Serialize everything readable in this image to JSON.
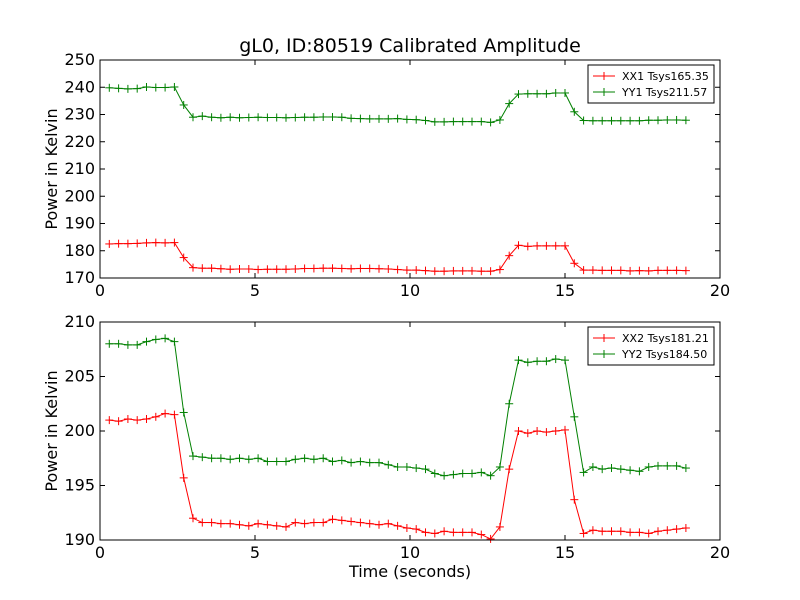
{
  "figure": {
    "title": "gL0, ID:80519 Calibrated Amplitude"
  },
  "chart_data": [
    {
      "type": "line",
      "title": "gL0, ID:80519 Calibrated Amplitude",
      "xlabel": "",
      "ylabel": "Power in Kelvin",
      "xlim": [
        0,
        20
      ],
      "ylim": [
        170,
        250
      ],
      "xticks": [
        "0",
        "5",
        "10",
        "15",
        "20"
      ],
      "yticks": [
        "170",
        "180",
        "190",
        "200",
        "210",
        "220",
        "230",
        "240",
        "250"
      ],
      "grid": false,
      "legend": "top-right",
      "series": [
        {
          "name": "XX1 Tsys165.35",
          "color": "#ff0000",
          "marker": "+",
          "x": [
            0.3,
            0.6,
            0.9,
            1.2,
            1.5,
            1.8,
            2.1,
            2.4,
            2.7,
            3.0,
            3.3,
            3.6,
            3.9,
            4.2,
            4.5,
            4.8,
            5.1,
            5.4,
            5.7,
            6.0,
            6.3,
            6.6,
            6.9,
            7.2,
            7.5,
            7.8,
            8.1,
            8.4,
            8.7,
            9.0,
            9.3,
            9.6,
            9.9,
            10.2,
            10.5,
            10.8,
            11.1,
            11.4,
            11.7,
            12.0,
            12.3,
            12.6,
            12.9,
            13.2,
            13.5,
            13.8,
            14.1,
            14.4,
            14.7,
            15.0,
            15.3,
            15.6,
            15.9,
            16.2,
            16.5,
            16.8,
            17.1,
            17.4,
            17.7,
            18.0,
            18.3,
            18.6,
            18.9
          ],
          "y": [
            182.5,
            182.6,
            182.6,
            182.7,
            182.9,
            183.0,
            182.9,
            183.0,
            177.5,
            173.8,
            173.6,
            173.6,
            173.4,
            173.2,
            173.3,
            173.3,
            173.1,
            173.2,
            173.2,
            173.2,
            173.3,
            173.5,
            173.5,
            173.6,
            173.6,
            173.5,
            173.4,
            173.5,
            173.5,
            173.4,
            173.3,
            173.1,
            172.9,
            172.9,
            172.7,
            172.5,
            172.5,
            172.6,
            172.6,
            172.6,
            172.5,
            172.5,
            173.1,
            178.2,
            182.0,
            181.6,
            181.8,
            181.8,
            181.8,
            181.8,
            175.4,
            172.9,
            172.9,
            172.8,
            172.8,
            172.8,
            172.6,
            172.7,
            172.6,
            172.8,
            172.8,
            172.8,
            172.7
          ]
        },
        {
          "name": "YY1 Tsys211.57",
          "color": "#008000",
          "marker": "+",
          "x": [
            0.3,
            0.6,
            0.9,
            1.2,
            1.5,
            1.8,
            2.1,
            2.4,
            2.7,
            3.0,
            3.3,
            3.6,
            3.9,
            4.2,
            4.5,
            4.8,
            5.1,
            5.4,
            5.7,
            6.0,
            6.3,
            6.6,
            6.9,
            7.2,
            7.5,
            7.8,
            8.1,
            8.4,
            8.7,
            9.0,
            9.3,
            9.6,
            9.9,
            10.2,
            10.5,
            10.8,
            11.1,
            11.4,
            11.7,
            12.0,
            12.3,
            12.6,
            12.9,
            13.2,
            13.5,
            13.8,
            14.1,
            14.4,
            14.7,
            15.0,
            15.3,
            15.6,
            15.9,
            16.2,
            16.5,
            16.8,
            17.1,
            17.4,
            17.7,
            18.0,
            18.3,
            18.6,
            18.9
          ],
          "y": [
            239.8,
            239.6,
            239.4,
            239.5,
            240.1,
            239.9,
            239.9,
            240.1,
            233.5,
            229.0,
            229.4,
            229.0,
            228.8,
            229.0,
            228.8,
            228.9,
            229.0,
            228.9,
            228.9,
            228.8,
            228.9,
            229.0,
            229.0,
            229.1,
            229.1,
            229.0,
            228.6,
            228.5,
            228.4,
            228.4,
            228.4,
            228.5,
            228.2,
            228.1,
            227.8,
            227.3,
            227.3,
            227.4,
            227.4,
            227.4,
            227.4,
            227.1,
            228.0,
            234.0,
            237.5,
            237.6,
            237.6,
            237.6,
            237.9,
            237.9,
            231.0,
            227.8,
            227.7,
            227.7,
            227.7,
            227.7,
            227.7,
            227.7,
            227.9,
            227.9,
            228.0,
            228.0,
            227.9
          ]
        }
      ]
    },
    {
      "type": "line",
      "title": "",
      "xlabel": "Time (seconds)",
      "ylabel": "Power in Kelvin",
      "xlim": [
        0,
        20
      ],
      "ylim": [
        190,
        210
      ],
      "xticks": [
        "0",
        "5",
        "10",
        "15",
        "20"
      ],
      "yticks": [
        "190",
        "195",
        "200",
        "205",
        "210"
      ],
      "grid": false,
      "legend": "top-right",
      "series": [
        {
          "name": "XX2 Tsys181.21",
          "color": "#ff0000",
          "marker": "+",
          "x": [
            0.3,
            0.6,
            0.9,
            1.2,
            1.5,
            1.8,
            2.1,
            2.4,
            2.7,
            3.0,
            3.3,
            3.6,
            3.9,
            4.2,
            4.5,
            4.8,
            5.1,
            5.4,
            5.7,
            6.0,
            6.3,
            6.6,
            6.9,
            7.2,
            7.5,
            7.8,
            8.1,
            8.4,
            8.7,
            9.0,
            9.3,
            9.6,
            9.9,
            10.2,
            10.5,
            10.8,
            11.1,
            11.4,
            11.7,
            12.0,
            12.3,
            12.6,
            12.9,
            13.2,
            13.5,
            13.8,
            14.1,
            14.4,
            14.7,
            15.0,
            15.3,
            15.6,
            15.9,
            16.2,
            16.5,
            16.8,
            17.1,
            17.4,
            17.7,
            18.0,
            18.3,
            18.6,
            18.9
          ],
          "y": [
            201.0,
            200.9,
            201.1,
            201.0,
            201.1,
            201.3,
            201.6,
            201.5,
            195.7,
            192.0,
            191.6,
            191.6,
            191.5,
            191.5,
            191.4,
            191.3,
            191.5,
            191.4,
            191.3,
            191.2,
            191.6,
            191.5,
            191.6,
            191.6,
            191.9,
            191.8,
            191.7,
            191.6,
            191.5,
            191.4,
            191.5,
            191.3,
            191.1,
            191.0,
            190.7,
            190.6,
            190.8,
            190.7,
            190.7,
            190.7,
            190.5,
            190.1,
            191.2,
            196.5,
            200.0,
            199.8,
            200.0,
            199.9,
            200.0,
            200.1,
            193.7,
            190.6,
            190.9,
            190.8,
            190.8,
            190.8,
            190.7,
            190.7,
            190.6,
            190.8,
            190.9,
            191.0,
            191.1
          ]
        },
        {
          "name": "YY2 Tsys184.50",
          "color": "#008000",
          "marker": "+",
          "x": [
            0.3,
            0.6,
            0.9,
            1.2,
            1.5,
            1.8,
            2.1,
            2.4,
            2.7,
            3.0,
            3.3,
            3.6,
            3.9,
            4.2,
            4.5,
            4.8,
            5.1,
            5.4,
            5.7,
            6.0,
            6.3,
            6.6,
            6.9,
            7.2,
            7.5,
            7.8,
            8.1,
            8.4,
            8.7,
            9.0,
            9.3,
            9.6,
            9.9,
            10.2,
            10.5,
            10.8,
            11.1,
            11.4,
            11.7,
            12.0,
            12.3,
            12.6,
            12.9,
            13.2,
            13.5,
            13.8,
            14.1,
            14.4,
            14.7,
            15.0,
            15.3,
            15.6,
            15.9,
            16.2,
            16.5,
            16.8,
            17.1,
            17.4,
            17.7,
            18.0,
            18.3,
            18.6,
            18.9
          ],
          "y": [
            208.0,
            208.0,
            207.9,
            207.9,
            208.2,
            208.4,
            208.5,
            208.2,
            201.7,
            197.7,
            197.6,
            197.5,
            197.5,
            197.4,
            197.5,
            197.4,
            197.5,
            197.2,
            197.2,
            197.2,
            197.4,
            197.5,
            197.4,
            197.5,
            197.2,
            197.3,
            197.1,
            197.2,
            197.1,
            197.1,
            196.9,
            196.7,
            196.7,
            196.6,
            196.5,
            196.1,
            195.9,
            196.0,
            196.1,
            196.1,
            196.2,
            195.9,
            196.7,
            202.5,
            206.5,
            206.3,
            206.4,
            206.4,
            206.6,
            206.5,
            201.3,
            196.2,
            196.7,
            196.5,
            196.6,
            196.5,
            196.4,
            196.3,
            196.7,
            196.8,
            196.8,
            196.8,
            196.6
          ]
        }
      ]
    }
  ]
}
